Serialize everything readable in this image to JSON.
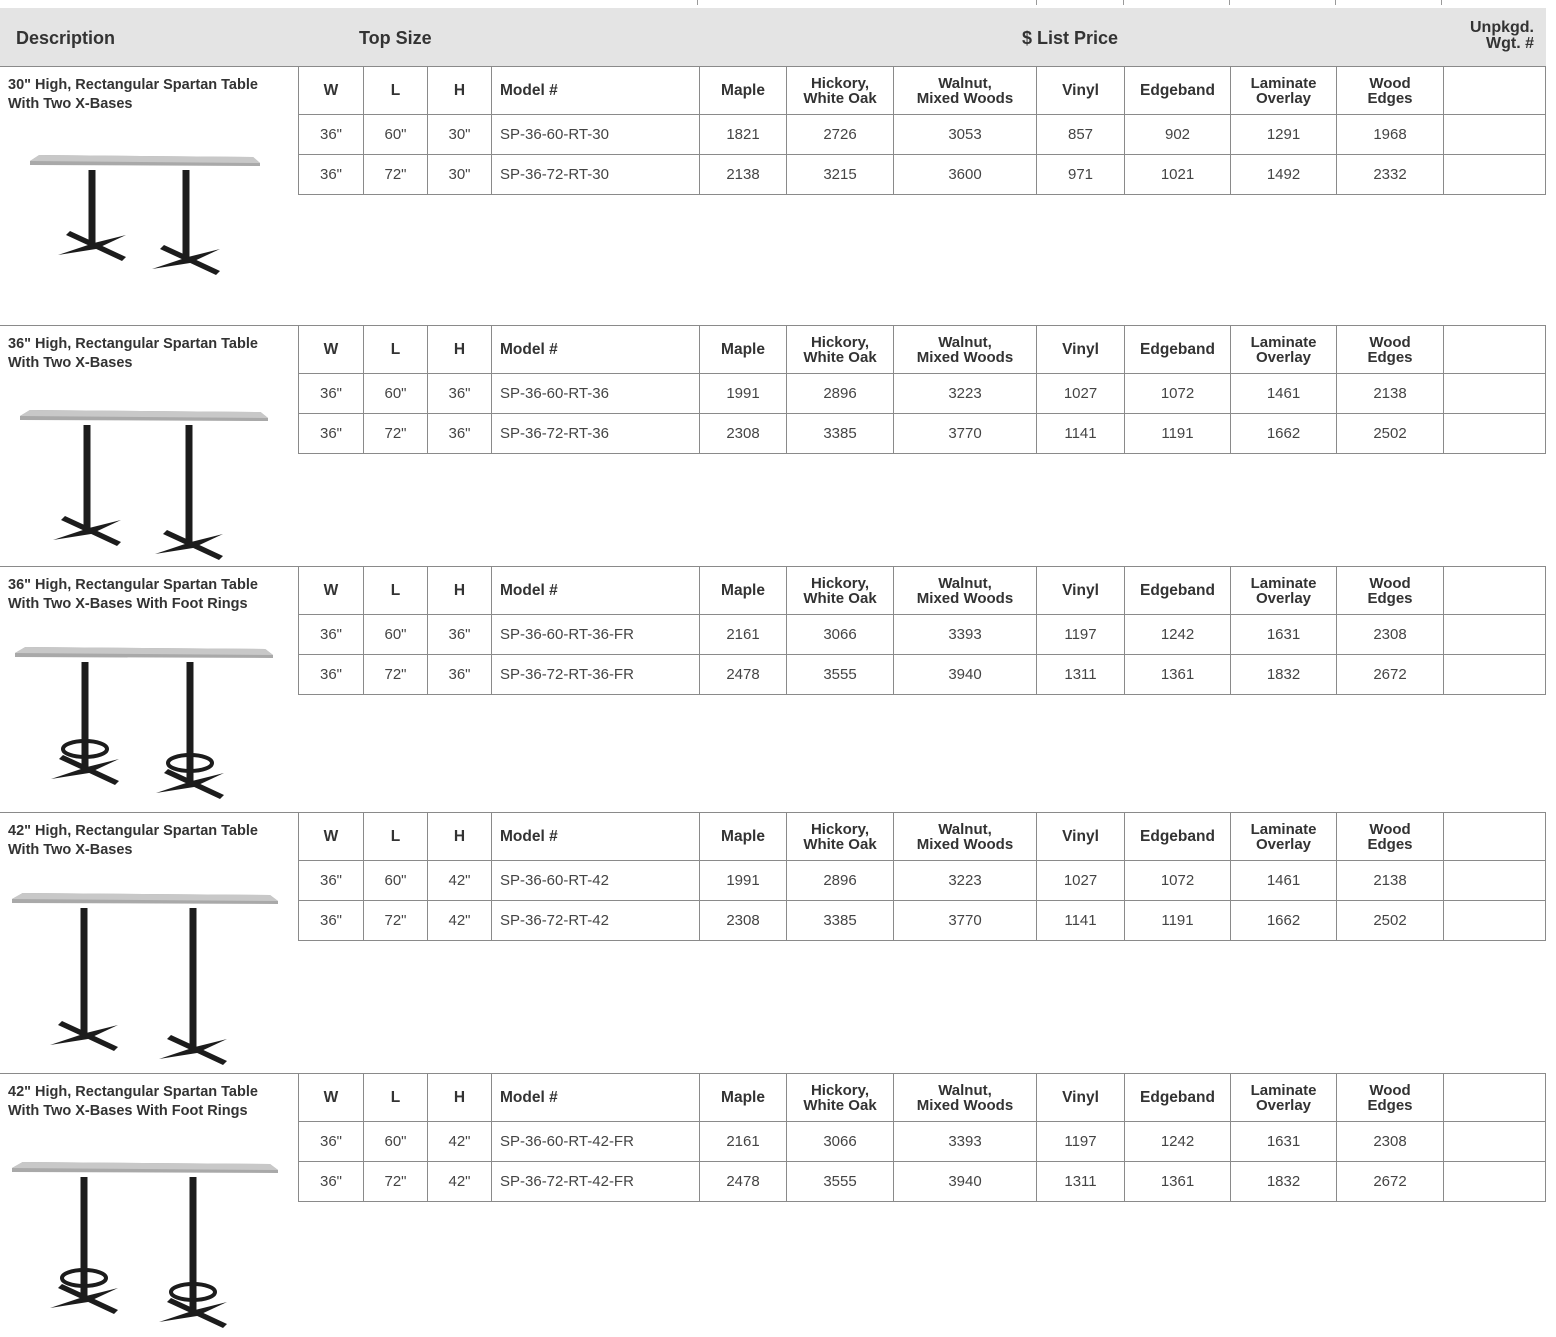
{
  "header": {
    "description": "Description",
    "top_size": "Top Size",
    "list_price": "$ List Price",
    "unpkgd_line1": "Unpkgd.",
    "unpkgd_line2": "Wgt. #"
  },
  "columns": {
    "w": "W",
    "l": "L",
    "h": "H",
    "model": "Model #",
    "maple": "Maple",
    "hickory_1": "Hickory,",
    "hickory_2": "White Oak",
    "walnut_1": "Walnut,",
    "walnut_2": "Mixed Woods",
    "vinyl": "Vinyl",
    "edgeband": "Edgeband",
    "laminate_1": "Laminate",
    "laminate_2": "Overlay",
    "wood_1": "Wood",
    "wood_2": "Edges"
  },
  "sections": [
    {
      "title_1": "30\" High, Rectangular Spartan Table",
      "title_2": "With Two X-Bases",
      "rows": [
        {
          "w": "36\"",
          "l": "60\"",
          "h": "30\"",
          "model": "SP-36-60-RT-30",
          "maple": "1821",
          "hickory": "2726",
          "walnut": "3053",
          "vinyl": "857",
          "edgeband": "902",
          "laminate": "1291",
          "wood": "1968",
          "wgt": ""
        },
        {
          "w": "36\"",
          "l": "72\"",
          "h": "30\"",
          "model": "SP-36-72-RT-30",
          "maple": "2138",
          "hickory": "3215",
          "walnut": "3600",
          "vinyl": "971",
          "edgeband": "1021",
          "laminate": "1492",
          "wood": "2332",
          "wgt": ""
        }
      ]
    },
    {
      "title_1": "36\" High, Rectangular Spartan Table",
      "title_2": "With Two X-Bases",
      "rows": [
        {
          "w": "36\"",
          "l": "60\"",
          "h": "36\"",
          "model": "SP-36-60-RT-36",
          "maple": "1991",
          "hickory": "2896",
          "walnut": "3223",
          "vinyl": "1027",
          "edgeband": "1072",
          "laminate": "1461",
          "wood": "2138",
          "wgt": ""
        },
        {
          "w": "36\"",
          "l": "72\"",
          "h": "36\"",
          "model": "SP-36-72-RT-36",
          "maple": "2308",
          "hickory": "3385",
          "walnut": "3770",
          "vinyl": "1141",
          "edgeband": "1191",
          "laminate": "1662",
          "wood": "2502",
          "wgt": ""
        }
      ]
    },
    {
      "title_1": "36\" High, Rectangular Spartan Table",
      "title_2": "With Two X-Bases With Foot Rings",
      "rows": [
        {
          "w": "36\"",
          "l": "60\"",
          "h": "36\"",
          "model": "SP-36-60-RT-36-FR",
          "maple": "2161",
          "hickory": "3066",
          "walnut": "3393",
          "vinyl": "1197",
          "edgeband": "1242",
          "laminate": "1631",
          "wood": "2308",
          "wgt": ""
        },
        {
          "w": "36\"",
          "l": "72\"",
          "h": "36\"",
          "model": "SP-36-72-RT-36-FR",
          "maple": "2478",
          "hickory": "3555",
          "walnut": "3940",
          "vinyl": "1311",
          "edgeband": "1361",
          "laminate": "1832",
          "wood": "2672",
          "wgt": ""
        }
      ]
    },
    {
      "title_1": "42\" High, Rectangular Spartan Table",
      "title_2": "With Two X-Bases",
      "rows": [
        {
          "w": "36\"",
          "l": "60\"",
          "h": "42\"",
          "model": "SP-36-60-RT-42",
          "maple": "1991",
          "hickory": "2896",
          "walnut": "3223",
          "vinyl": "1027",
          "edgeband": "1072",
          "laminate": "1461",
          "wood": "2138",
          "wgt": ""
        },
        {
          "w": "36\"",
          "l": "72\"",
          "h": "42\"",
          "model": "SP-36-72-RT-42",
          "maple": "2308",
          "hickory": "3385",
          "walnut": "3770",
          "vinyl": "1141",
          "edgeband": "1191",
          "laminate": "1662",
          "wood": "2502",
          "wgt": ""
        }
      ]
    },
    {
      "title_1": "42\" High, Rectangular Spartan Table",
      "title_2": "With Two X-Bases With Foot Rings",
      "rows": [
        {
          "w": "36\"",
          "l": "60\"",
          "h": "42\"",
          "model": "SP-36-60-RT-42-FR",
          "maple": "2161",
          "hickory": "3066",
          "walnut": "3393",
          "vinyl": "1197",
          "edgeband": "1242",
          "laminate": "1631",
          "wood": "2308",
          "wgt": ""
        },
        {
          "w": "36\"",
          "l": "72\"",
          "h": "42\"",
          "model": "SP-36-72-RT-42-FR",
          "maple": "2478",
          "hickory": "3555",
          "walnut": "3940",
          "vinyl": "1311",
          "edgeband": "1361",
          "laminate": "1832",
          "wood": "2672",
          "wgt": ""
        }
      ]
    }
  ]
}
